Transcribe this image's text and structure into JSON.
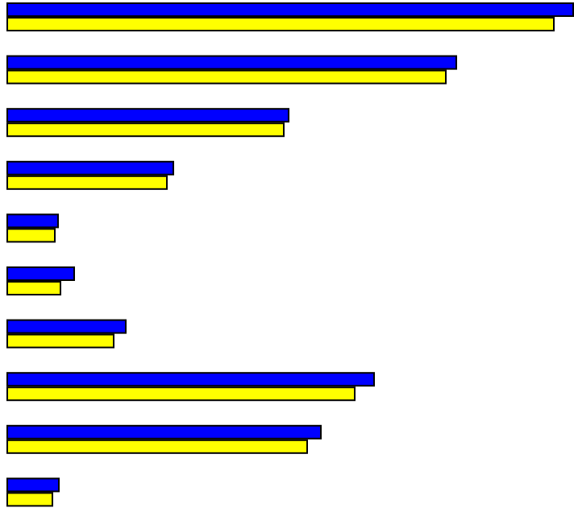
{
  "chart_data": {
    "type": "bar",
    "orientation": "horizontal",
    "categories": [
      "",
      "",
      "",
      "",
      "",
      "",
      "",
      "",
      "",
      ""
    ],
    "series": [
      {
        "color": "#0000ff",
        "values": [
          704,
          559,
          351,
          208,
          65,
          85,
          149,
          457,
          391,
          66
        ]
      },
      {
        "color": "#ffff00",
        "values": [
          680,
          546,
          345,
          200,
          61,
          68,
          134,
          433,
          374,
          58
        ]
      }
    ],
    "xlim": [
      0,
      704
    ],
    "grid": false,
    "legend": "none",
    "bar_outline_color": "#000000"
  }
}
